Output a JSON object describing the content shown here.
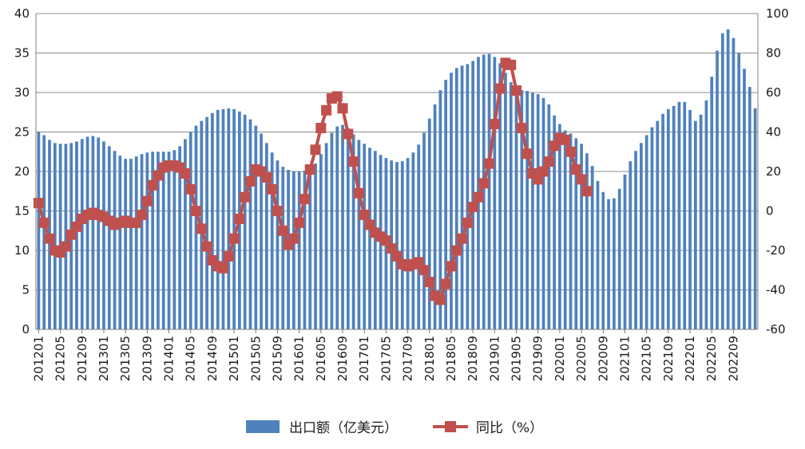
{
  "chart_data": {
    "type": "bar",
    "title": "",
    "xlabel": "",
    "ylabel": "",
    "y2label": "",
    "grid": true,
    "legend_position": "bottom-center",
    "ylim": [
      0,
      40
    ],
    "y2lim": [
      -60,
      100
    ],
    "y_ticks": [
      "0",
      "5",
      "10",
      "15",
      "20",
      "25",
      "30",
      "35",
      "40"
    ],
    "y2_ticks": [
      "-60",
      "-40",
      "-20",
      "0",
      "20",
      "40",
      "60",
      "80",
      "100"
    ],
    "x_tick_labels": [
      "201201",
      "201205",
      "201209",
      "201301",
      "201305",
      "201309",
      "201401",
      "201405",
      "201409",
      "201501",
      "201505",
      "201509",
      "201601",
      "201605",
      "201609",
      "201701",
      "201705",
      "201709",
      "201801",
      "201805",
      "201809",
      "201901",
      "201905",
      "201909",
      "202001",
      "202005",
      "202009",
      "202101",
      "202105",
      "202109",
      "202201",
      "202205",
      "202209"
    ],
    "x_start": "2012-01",
    "series": [
      {
        "name": "出口额（亿美元）",
        "type": "bar",
        "axis": "left",
        "color": "#4f81bd",
        "values": [
          25.0,
          24.6,
          24.0,
          23.6,
          23.5,
          23.5,
          23.6,
          23.8,
          24.1,
          24.4,
          24.5,
          24.3,
          23.8,
          23.2,
          22.6,
          22.0,
          21.6,
          21.6,
          21.9,
          22.2,
          22.4,
          22.5,
          22.5,
          22.5,
          22.5,
          22.7,
          23.2,
          24.1,
          25.0,
          25.8,
          26.4,
          26.9,
          27.4,
          27.8,
          27.9,
          28.0,
          27.9,
          27.6,
          27.2,
          26.6,
          25.8,
          24.8,
          23.6,
          22.4,
          21.4,
          20.6,
          20.2,
          20.0,
          20.0,
          20.1,
          20.4,
          21.0,
          22.2,
          23.6,
          24.9,
          25.7,
          25.9,
          25.5,
          24.7,
          24.0,
          23.5,
          23.0,
          22.6,
          22.1,
          21.7,
          21.4,
          21.2,
          21.3,
          21.7,
          22.4,
          23.4,
          24.9,
          26.7,
          28.5,
          30.3,
          31.6,
          32.5,
          33.1,
          33.4,
          33.6,
          34.0,
          34.5,
          34.8,
          34.9,
          34.5,
          33.7,
          32.5,
          31.3,
          30.5,
          30.3,
          30.2,
          30.0,
          29.8,
          29.3,
          28.5,
          27.1,
          26.0,
          25.2,
          24.8,
          24.2,
          23.5,
          22.3,
          20.7,
          18.8,
          17.4,
          16.5,
          16.6,
          17.8,
          19.6,
          21.3,
          22.6,
          23.6,
          24.6,
          25.6,
          26.4,
          27.3,
          27.9,
          28.3,
          28.8,
          28.8,
          27.8,
          26.4,
          27.2,
          29.0,
          32.0,
          35.3,
          37.5,
          38.0,
          36.9,
          35.0,
          33.0,
          30.7,
          28.0
        ]
      },
      {
        "name": "同比（%）",
        "type": "line",
        "axis": "right",
        "color": "#c0504d",
        "values": [
          4,
          -6,
          -14,
          -20,
          -21,
          -18,
          -12,
          -8,
          -4,
          -2,
          -1,
          -2,
          -3,
          -5,
          -7,
          -6,
          -5,
          -6,
          -6,
          -2,
          5,
          13,
          18,
          22,
          23,
          23,
          22,
          19,
          11,
          0,
          -9,
          -18,
          -25,
          -28,
          -29,
          -23,
          -14,
          -4,
          7,
          15,
          21,
          20,
          17,
          11,
          0,
          -10,
          -17,
          -14,
          -6,
          6,
          21,
          31,
          42,
          51,
          57,
          58,
          52,
          39,
          25,
          9,
          -2,
          -7,
          -11,
          -13,
          -15,
          -19,
          -23,
          -27,
          -28,
          -27,
          -26,
          -30,
          -36,
          -43,
          -45,
          -37,
          -28,
          -20,
          -14,
          -6,
          2,
          7,
          14,
          24,
          44,
          62,
          75,
          74,
          61,
          42,
          29,
          19,
          16,
          20,
          25,
          33,
          37,
          36,
          30,
          21,
          16,
          10
        ]
      }
    ],
    "legend": [
      {
        "label": "出口额（亿美元）",
        "color": "#4f81bd",
        "kind": "bar"
      },
      {
        "label": "同比（%）",
        "color": "#c0504d",
        "kind": "line-marker"
      }
    ]
  }
}
